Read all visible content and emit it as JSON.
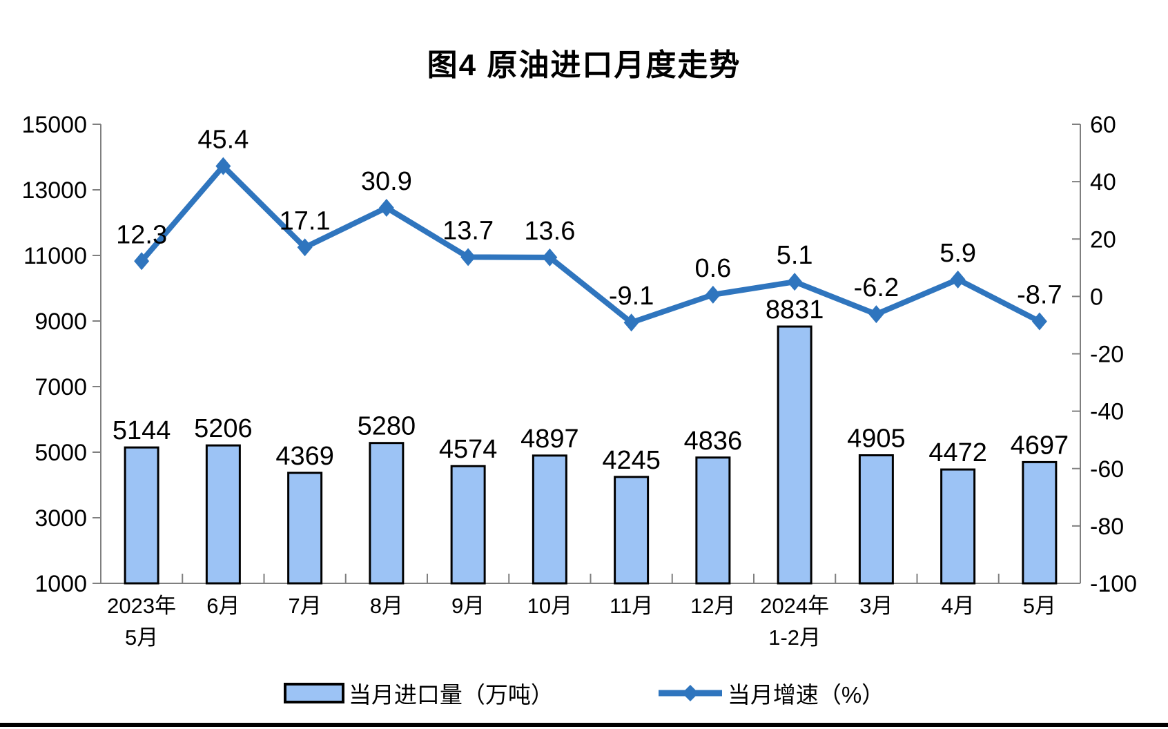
{
  "chart_data": {
    "type": "combo",
    "title": "图4 原油进口月度走势",
    "categories": [
      [
        "2023年",
        "5月"
      ],
      [
        "6月"
      ],
      [
        "7月"
      ],
      [
        "8月"
      ],
      [
        "9月"
      ],
      [
        "10月"
      ],
      [
        "11月"
      ],
      [
        "12月"
      ],
      [
        "2024年",
        "1-2月"
      ],
      [
        "3月"
      ],
      [
        "4月"
      ],
      [
        "5月"
      ]
    ],
    "series": [
      {
        "name": "当月进口量（万吨）",
        "type": "bar",
        "axis": "left",
        "values": [
          5144,
          5206,
          4369,
          5280,
          4574,
          4897,
          4245,
          4836,
          8831,
          4905,
          4472,
          4697
        ]
      },
      {
        "name": "当月增速（%）",
        "type": "line",
        "axis": "right",
        "values": [
          12.3,
          45.4,
          17.1,
          30.9,
          13.7,
          13.6,
          -9.1,
          0.6,
          5.1,
          -6.2,
          5.9,
          -8.7
        ]
      }
    ],
    "left_axis": {
      "min": 1000,
      "max": 15000,
      "step": 2000,
      "ticks": [
        "15000",
        "13000",
        "11000",
        "9000",
        "7000",
        "5000",
        "3000",
        "1000"
      ]
    },
    "right_axis": {
      "min": -100,
      "max": 60,
      "step": 20,
      "ticks": [
        "60",
        "40",
        "20",
        "0",
        "-20",
        "-40",
        "-60",
        "-80",
        "-100"
      ]
    },
    "legend_position": "bottom",
    "grid": false,
    "colors": {
      "bar_fill": "#9CC3F5",
      "bar_border": "#000000",
      "line": "#2F75BE",
      "axis_line": "#7F7F7F",
      "text": "#000000"
    }
  }
}
